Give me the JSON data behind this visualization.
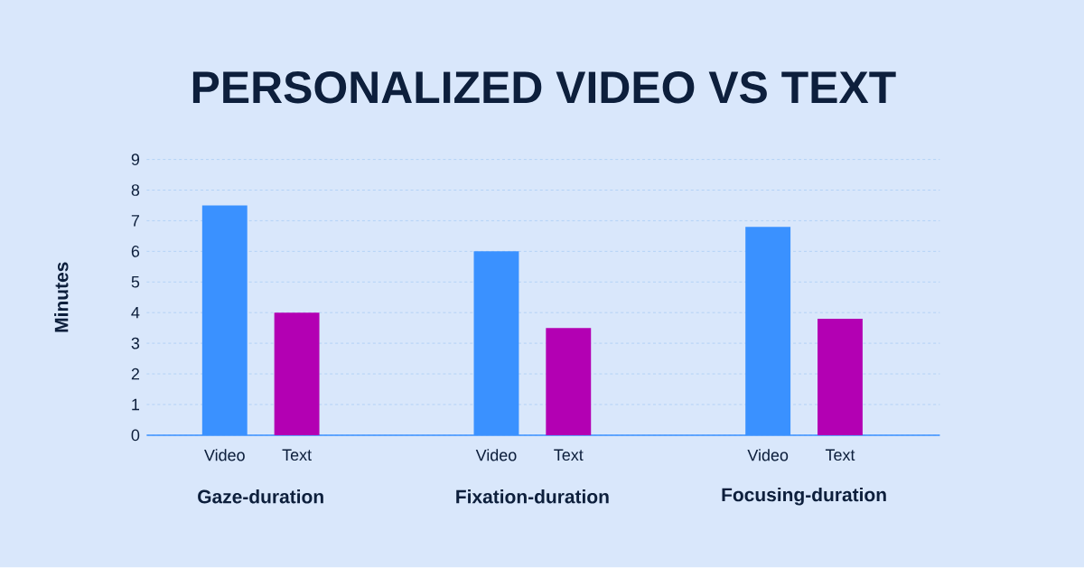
{
  "chart_data": {
    "type": "bar",
    "title": "PERSONALIZED VIDEO VS TEXT",
    "ylabel": "Minutes",
    "categories": [
      "Gaze-duration",
      "Fixation-duration",
      "Focusing-duration"
    ],
    "series": [
      {
        "name": "Video",
        "color": "#3a91ff",
        "values": [
          7.5,
          6.0,
          6.8
        ]
      },
      {
        "name": "Text",
        "color": "#b300b3",
        "values": [
          4.0,
          3.5,
          3.8
        ]
      }
    ],
    "ylim": [
      0,
      9
    ],
    "yticks": [
      0,
      1,
      2,
      3,
      4,
      5,
      6,
      7,
      8,
      9
    ],
    "grid": "y"
  }
}
